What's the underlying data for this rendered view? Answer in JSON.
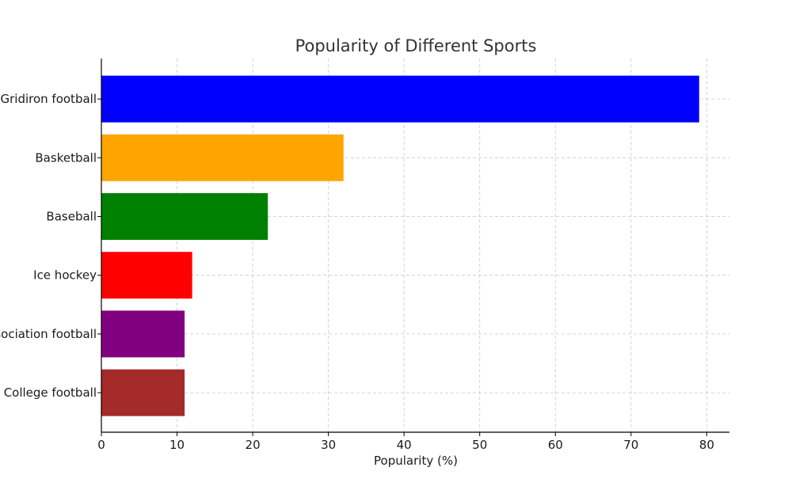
{
  "chart_data": {
    "type": "bar",
    "orientation": "horizontal",
    "title": "Popularity of Different Sports",
    "xlabel": "Popularity (%)",
    "ylabel": "",
    "categories": [
      "Gridiron football",
      "Basketball",
      "Baseball",
      "Ice hockey",
      "Association football",
      "College football"
    ],
    "values": [
      79,
      32,
      22,
      12,
      11,
      11
    ],
    "colors": [
      "#0000ff",
      "#ffa500",
      "#008000",
      "#ff0000",
      "#800080",
      "#a52a2a"
    ],
    "xlim": [
      0,
      83
    ],
    "xticks": [
      0,
      10,
      20,
      30,
      40,
      50,
      60,
      70,
      80
    ],
    "grid": true
  }
}
